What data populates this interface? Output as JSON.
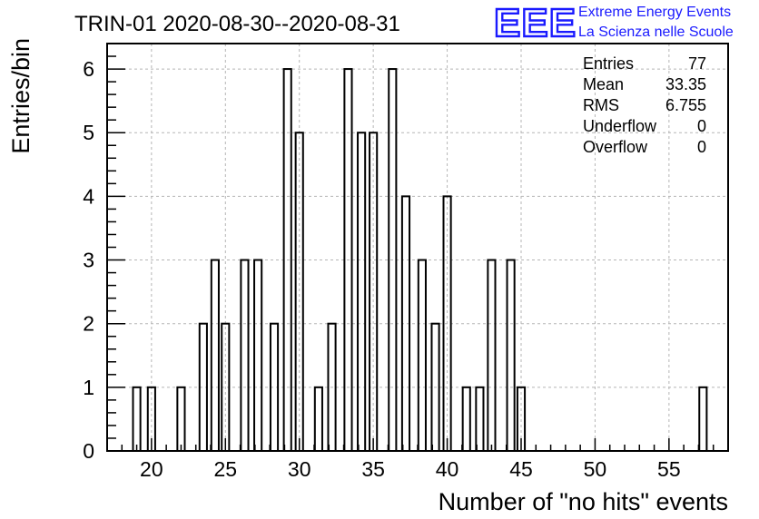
{
  "title": "TRIN-01 2020-08-30--2020-08-31",
  "logo": {
    "mark": "EEE",
    "line1": "Extreme Energy Events",
    "line2": "La Scienza nelle Scuole",
    "color": "#1a1aff"
  },
  "stats": [
    {
      "label": "Entries",
      "value": "77"
    },
    {
      "label": "Mean",
      "value": "33.35"
    },
    {
      "label": "RMS",
      "value": "6.755"
    },
    {
      "label": "Underflow",
      "value": "0"
    },
    {
      "label": "Overflow",
      "value": "0"
    }
  ],
  "chart_data": {
    "type": "bar",
    "title": "TRIN-01 2020-08-30--2020-08-31",
    "xlabel": "Number of \"no hits\" events",
    "ylabel": "Entries/bin",
    "xlim": [
      17,
      59
    ],
    "ylim": [
      0,
      6.4
    ],
    "bin_width": 1,
    "grid": true,
    "x_ticks": [
      20,
      25,
      30,
      35,
      40,
      45,
      50,
      55
    ],
    "y_ticks": [
      0,
      1,
      2,
      3,
      4,
      5,
      6
    ],
    "bins": [
      {
        "x": 19,
        "value": 1
      },
      {
        "x": 20,
        "value": 1
      },
      {
        "x": 22,
        "value": 1
      },
      {
        "x": 23.5,
        "value": 2
      },
      {
        "x": 24.3,
        "value": 3
      },
      {
        "x": 25,
        "value": 2
      },
      {
        "x": 26.3,
        "value": 3
      },
      {
        "x": 27.2,
        "value": 3
      },
      {
        "x": 28.3,
        "value": 2
      },
      {
        "x": 29.2,
        "value": 6
      },
      {
        "x": 30,
        "value": 5
      },
      {
        "x": 31.3,
        "value": 1
      },
      {
        "x": 32.2,
        "value": 2
      },
      {
        "x": 33.3,
        "value": 6
      },
      {
        "x": 34.2,
        "value": 5
      },
      {
        "x": 35,
        "value": 5
      },
      {
        "x": 36.3,
        "value": 6
      },
      {
        "x": 37.2,
        "value": 4
      },
      {
        "x": 38.3,
        "value": 3
      },
      {
        "x": 39.2,
        "value": 2
      },
      {
        "x": 40,
        "value": 4
      },
      {
        "x": 41.3,
        "value": 1
      },
      {
        "x": 42.2,
        "value": 1
      },
      {
        "x": 43,
        "value": 3
      },
      {
        "x": 44.3,
        "value": 3
      },
      {
        "x": 45,
        "value": 1
      },
      {
        "x": 57.3,
        "value": 1
      }
    ]
  }
}
